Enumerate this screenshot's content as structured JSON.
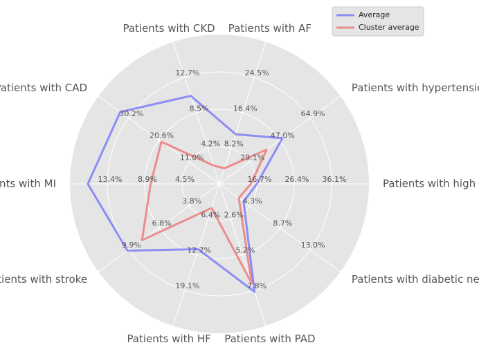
{
  "chart_data": {
    "type": "radar",
    "categories": [
      "Patients with high cholesterol",
      "Patients with hypertension",
      "Patients with AF",
      "Patients with CKD",
      "Patients with CAD",
      "Patients with MI",
      "Patients with stroke",
      "Patients with HF",
      "Patients with PAD",
      "Patients with diabetic neuropathy"
    ],
    "axis_ticks": [
      [
        "16.7%",
        "26.4%",
        "36.1%"
      ],
      [
        "29.1%",
        "47.0%",
        "64.9%"
      ],
      [
        "8.2%",
        "16.4%",
        "24.5%"
      ],
      [
        "4.2%",
        "8.5%",
        "12.7%"
      ],
      [
        "11.0%",
        "20.6%",
        "30.2%"
      ],
      [
        "4.5%",
        "8.9%",
        "13.4%"
      ],
      [
        "3.8%",
        "6.8%",
        "9.9%"
      ],
      [
        "6.4%",
        "12.7%",
        "19.1%"
      ],
      [
        "2.6%",
        "5.2%",
        "7.8%"
      ],
      [
        "4.3%",
        "8.7%",
        "13.0%"
      ]
    ],
    "series": [
      {
        "name": "Average",
        "color": "#5555ff",
        "values": [
          0.25,
          0.52,
          0.35,
          0.62,
          0.82,
          0.88,
          0.76,
          0.46,
          0.76,
          0.2
        ]
      },
      {
        "name": "Cluster average",
        "color": "#ee5555",
        "values": [
          0.21,
          0.39,
          0.11,
          0.13,
          0.48,
          0.46,
          0.64,
          0.17,
          0.7,
          0.16
        ]
      }
    ],
    "legend_position": "top-right",
    "grid": true
  }
}
